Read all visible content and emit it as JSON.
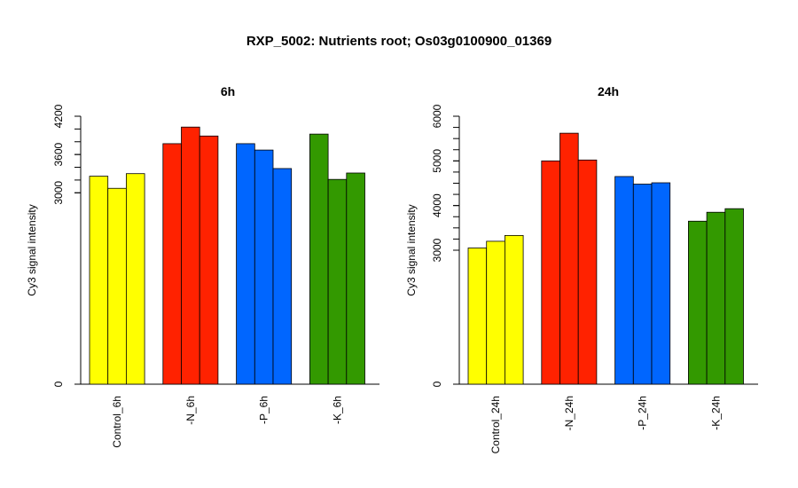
{
  "title": "RXP_5002: Nutrients root; Os03g0100900_01369",
  "chart_data": [
    {
      "type": "bar",
      "title": "6h",
      "ylabel": "Cy3 signal intensity",
      "ylim": [
        0,
        4200
      ],
      "yticks": [
        0,
        3000,
        3600,
        4200
      ],
      "categories": [
        "Control_6h",
        "-N_6h",
        "-P_6h",
        "-K_6h"
      ],
      "colors": [
        "#ffff00",
        "#ff2200",
        "#0066ff",
        "#339900"
      ],
      "values": [
        [
          3260,
          3070,
          3300
        ],
        [
          3770,
          4030,
          3890
        ],
        [
          3770,
          3670,
          3380
        ],
        [
          3920,
          3210,
          3310
        ]
      ]
    },
    {
      "type": "bar",
      "title": "24h",
      "ylabel": "Cy3 signal intensity",
      "ylim": [
        0,
        6000
      ],
      "yticks": [
        0,
        3000,
        4000,
        5000,
        6000
      ],
      "categories": [
        "Control_24h",
        "-N_24h",
        "-P_24h",
        "-K_24h"
      ],
      "colors": [
        "#ffff00",
        "#ff2200",
        "#0066ff",
        "#339900"
      ],
      "values": [
        [
          3050,
          3200,
          3330
        ],
        [
          5000,
          5620,
          5020
        ],
        [
          4650,
          4480,
          4510
        ],
        [
          3650,
          3850,
          3930
        ]
      ]
    }
  ]
}
